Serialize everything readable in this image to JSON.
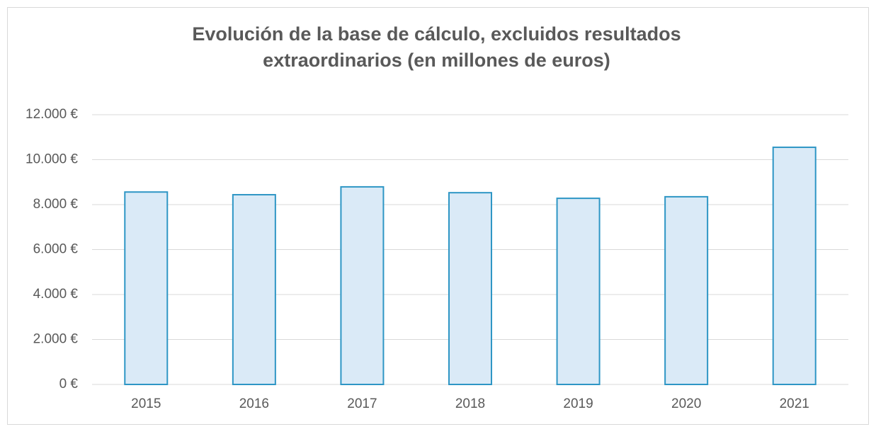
{
  "chart_data": {
    "type": "bar",
    "title": "Evolución de la base de cálculo, excluidos resultados extraordinarios (en millones de euros)",
    "categories": [
      "2015",
      "2016",
      "2017",
      "2018",
      "2019",
      "2020",
      "2021"
    ],
    "values": [
      8560,
      8440,
      8790,
      8530,
      8280,
      8350,
      10550
    ],
    "color": "#daeaf7",
    "edge_color": "#2e96c5",
    "ylim": [
      0,
      12000
    ],
    "yticks": [
      {
        "value": 0,
        "label": "0 €"
      },
      {
        "value": 2000,
        "label": "2.000 €"
      },
      {
        "value": 4000,
        "label": "4.000 €"
      },
      {
        "value": 6000,
        "label": "6.000 €"
      },
      {
        "value": 8000,
        "label": "8.000 €"
      },
      {
        "value": 10000,
        "label": "10.000 €"
      },
      {
        "value": 12000,
        "label": "12.000 €"
      }
    ],
    "grid": true
  }
}
